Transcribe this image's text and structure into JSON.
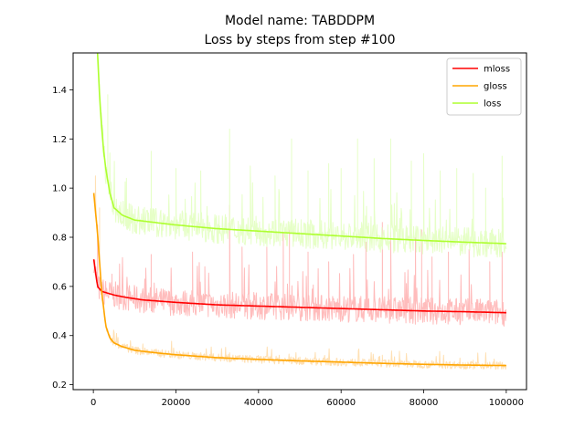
{
  "chart_data": {
    "type": "line",
    "title": "Model name: TABDDPM",
    "subtitle": "Loss by steps from step #100",
    "xlim": [
      -4900,
      104900
    ],
    "ylim": [
      0.18,
      1.55
    ],
    "xticks": [
      0,
      20000,
      40000,
      60000,
      80000,
      100000
    ],
    "yticks": [
      0.2,
      0.4,
      0.6,
      0.8,
      1.0,
      1.2,
      1.4
    ],
    "x_tick_labels": [
      "0",
      "20000",
      "40000",
      "60000",
      "80000",
      "100000"
    ],
    "y_tick_labels": [
      "0.2",
      "0.4",
      "0.6",
      "0.8",
      "1.0",
      "1.2",
      "1.4"
    ],
    "legend_position": "top-right",
    "grid": false,
    "series": [
      {
        "name": "mloss",
        "color": "#ff0000",
        "raw_color": "#ffbcbc",
        "smoothed": [
          [
            100,
            0.71
          ],
          [
            1000,
            0.6
          ],
          [
            2000,
            0.58
          ],
          [
            3000,
            0.575
          ],
          [
            5000,
            0.565
          ],
          [
            8000,
            0.555
          ],
          [
            12000,
            0.545
          ],
          [
            20000,
            0.535
          ],
          [
            30000,
            0.525
          ],
          [
            40000,
            0.52
          ],
          [
            50000,
            0.515
          ],
          [
            60000,
            0.51
          ],
          [
            70000,
            0.505
          ],
          [
            80000,
            0.5
          ],
          [
            90000,
            0.497
          ],
          [
            100000,
            0.493
          ]
        ],
        "raw_noise": {
          "down": 0.05,
          "up": 0.06
        },
        "spikes": [
          [
            1000,
            0.85
          ],
          [
            4500,
            0.65
          ],
          [
            14000,
            0.73
          ],
          [
            24000,
            0.74
          ],
          [
            27000,
            0.68
          ],
          [
            33000,
            0.93
          ],
          [
            36000,
            0.76
          ],
          [
            42000,
            0.76
          ],
          [
            46000,
            0.82
          ],
          [
            47500,
            0.83
          ],
          [
            52000,
            0.74
          ],
          [
            57000,
            0.7
          ],
          [
            63000,
            0.73
          ],
          [
            66000,
            0.78
          ],
          [
            70000,
            0.86
          ],
          [
            72000,
            0.82
          ],
          [
            78000,
            0.8
          ],
          [
            79500,
            0.83
          ],
          [
            82000,
            0.72
          ],
          [
            86000,
            0.74
          ],
          [
            91000,
            0.75
          ],
          [
            96000,
            0.7
          ],
          [
            99000,
            0.74
          ]
        ]
      },
      {
        "name": "gloss",
        "color": "#ffa500",
        "raw_color": "#ffe0b3",
        "smoothed": [
          [
            100,
            0.98
          ],
          [
            1000,
            0.82
          ],
          [
            2000,
            0.58
          ],
          [
            3000,
            0.44
          ],
          [
            4000,
            0.39
          ],
          [
            5000,
            0.37
          ],
          [
            7000,
            0.355
          ],
          [
            10000,
            0.34
          ],
          [
            15000,
            0.33
          ],
          [
            20000,
            0.322
          ],
          [
            30000,
            0.31
          ],
          [
            40000,
            0.303
          ],
          [
            50000,
            0.297
          ],
          [
            60000,
            0.292
          ],
          [
            70000,
            0.287
          ],
          [
            80000,
            0.283
          ],
          [
            90000,
            0.28
          ],
          [
            100000,
            0.278
          ]
        ],
        "raw_noise": {
          "down": 0.012,
          "up": 0.02
        },
        "spikes": [
          [
            500,
            1.05
          ],
          [
            1500,
            0.92
          ],
          [
            33000,
            0.33
          ],
          [
            45000,
            0.32
          ],
          [
            70000,
            0.32
          ],
          [
            92000,
            0.3
          ]
        ]
      },
      {
        "name": "loss",
        "color": "#adff2f",
        "raw_color": "#e6ffc7",
        "smoothed": [
          [
            1000,
            1.55
          ],
          [
            1500,
            1.38
          ],
          [
            2000,
            1.25
          ],
          [
            2500,
            1.15
          ],
          [
            3000,
            1.08
          ],
          [
            4000,
            0.98
          ],
          [
            5000,
            0.92
          ],
          [
            7000,
            0.89
          ],
          [
            10000,
            0.87
          ],
          [
            15000,
            0.86
          ],
          [
            20000,
            0.85
          ],
          [
            30000,
            0.835
          ],
          [
            40000,
            0.825
          ],
          [
            50000,
            0.815
          ],
          [
            60000,
            0.805
          ],
          [
            70000,
            0.795
          ],
          [
            80000,
            0.787
          ],
          [
            90000,
            0.78
          ],
          [
            100000,
            0.774
          ]
        ],
        "raw_noise": {
          "down": 0.05,
          "up": 0.07
        },
        "spikes": [
          [
            3500,
            1.38
          ],
          [
            8000,
            1.04
          ],
          [
            14000,
            1.15
          ],
          [
            20000,
            1.08
          ],
          [
            26000,
            1.07
          ],
          [
            33000,
            1.24
          ],
          [
            38000,
            1.09
          ],
          [
            44000,
            1.05
          ],
          [
            48000,
            1.2
          ],
          [
            52000,
            1.07
          ],
          [
            57000,
            1.1
          ],
          [
            60000,
            1.08
          ],
          [
            64000,
            1.2
          ],
          [
            68000,
            1.12
          ],
          [
            72000,
            1.2
          ],
          [
            77000,
            1.11
          ],
          [
            80000,
            1.14
          ],
          [
            84000,
            1.07
          ],
          [
            88000,
            1.08
          ],
          [
            92000,
            1.06
          ],
          [
            95000,
            1.0
          ],
          [
            99000,
            1.13
          ]
        ]
      }
    ]
  }
}
